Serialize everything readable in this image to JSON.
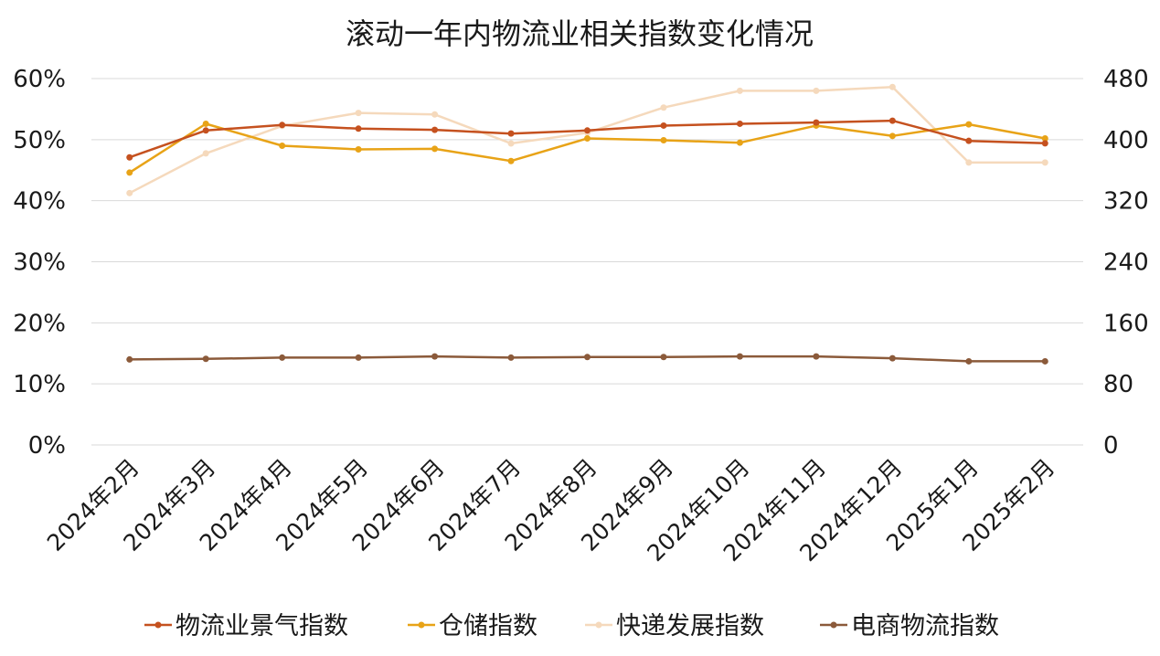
{
  "chart_data": {
    "type": "line",
    "title": "滚动一年内物流业相关指数变化情况",
    "categories": [
      "2024年2月",
      "2024年3月",
      "2024年4月",
      "2024年5月",
      "2024年6月",
      "2024年7月",
      "2024年8月",
      "2024年9月",
      "2024年10月",
      "2024年11月",
      "2024年12月",
      "2025年1月",
      "2025年2月"
    ],
    "y_left": {
      "ticks": [
        "0%",
        "10%",
        "20%",
        "30%",
        "40%",
        "50%",
        "60%"
      ],
      "range": [
        0,
        60
      ]
    },
    "y_right": {
      "ticks": [
        "0",
        "80",
        "160",
        "240",
        "320",
        "400",
        "480"
      ],
      "range": [
        0,
        480
      ]
    },
    "grid": "horizontal",
    "legend_position": "bottom",
    "series": [
      {
        "name": "物流业景气指数",
        "axis": "left",
        "color": "#C5511F",
        "values": [
          47.1,
          51.5,
          52.4,
          51.8,
          51.6,
          51.0,
          51.5,
          52.3,
          52.6,
          52.8,
          53.1,
          49.8,
          49.4
        ]
      },
      {
        "name": "仓储指数",
        "axis": "left",
        "color": "#E8A317",
        "values": [
          44.6,
          52.6,
          49.0,
          48.4,
          48.5,
          46.5,
          50.2,
          49.9,
          49.5,
          52.3,
          50.6,
          52.5,
          50.2
        ]
      },
      {
        "name": "快递发展指数",
        "axis": "right",
        "color": "#F5D9BC",
        "values": [
          330,
          382,
          418,
          435,
          433,
          395,
          409,
          442,
          464,
          464,
          469,
          370,
          370
        ]
      },
      {
        "name": "电商物流指数",
        "axis": "left",
        "color": "#8B5A3A",
        "values": [
          14.0,
          14.1,
          14.3,
          14.3,
          14.5,
          14.3,
          14.4,
          14.4,
          14.5,
          14.5,
          14.2,
          13.7,
          13.7
        ]
      }
    ]
  }
}
